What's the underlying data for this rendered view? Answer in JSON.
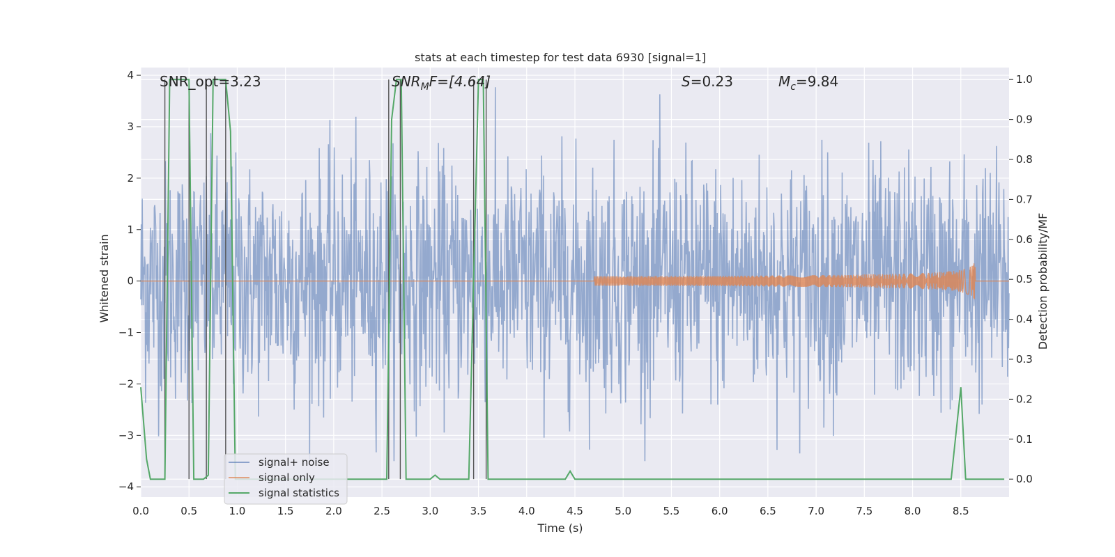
{
  "chart_data": {
    "type": "line",
    "title": "stats at each timestep for test data 6930 [signal=1]",
    "xlabel": "Time (s)",
    "ylabel": "Whitened strain",
    "ylabel_right": "Detection probability/MF",
    "xlim": [
      0.0,
      9.0
    ],
    "ylim": [
      -4.2,
      4.15
    ],
    "ylim_right": [
      -0.045,
      1.03
    ],
    "x_ticks": [
      "0.0",
      "0.5",
      "1.0",
      "1.5",
      "2.0",
      "2.5",
      "3.0",
      "3.5",
      "4.0",
      "4.5",
      "5.0",
      "5.5",
      "6.0",
      "6.5",
      "7.0",
      "7.5",
      "8.0",
      "8.5"
    ],
    "y_ticks": [
      "−4",
      "−3",
      "−2",
      "−1",
      "0",
      "1",
      "2",
      "3",
      "4"
    ],
    "y_ticks_right": [
      "0.0",
      "0.1",
      "0.2",
      "0.3",
      "0.4",
      "0.5",
      "0.6",
      "0.7",
      "0.8",
      "0.9",
      "1.0"
    ],
    "grid": true,
    "legend_position": "lower-left",
    "annotations": {
      "snr_opt": "SNR_opt=3.23",
      "snr_mf_label": "SNR",
      "snr_mf_sub": "M",
      "snr_mf_rest": "F=[4.64]",
      "s_label": "S",
      "s_rest": "=0.23",
      "mc_label": "M",
      "mc_sub": "c",
      "mc_rest": "=9.84"
    },
    "series": [
      {
        "name": "signal+ noise",
        "color": "#4c72b0",
        "description": "noisy whitened strain, amplitude roughly within ±2 with spikes to ±3.8",
        "envelope": [
          -1.6,
          1.6
        ],
        "peak": [
          -3.5,
          3.8
        ]
      },
      {
        "name": "signal only",
        "color": "#dd8452",
        "description": "chirp signal growing in amplitude toward merger",
        "x_start": 4.7,
        "x_merger": 8.65,
        "peak_amplitude": 0.4
      },
      {
        "name": "signal statistics",
        "color": "#55a868",
        "axis": "right",
        "x": [
          0.0,
          0.06,
          0.1,
          0.25,
          0.3,
          0.5,
          0.55,
          0.6,
          0.65,
          0.7,
          0.75,
          0.8,
          0.88,
          0.93,
          0.98,
          1.05,
          1.1,
          1.5,
          2.0,
          2.55,
          2.6,
          2.65,
          2.7,
          2.75,
          2.8,
          3.0,
          3.05,
          3.1,
          3.4,
          3.5,
          3.55,
          3.6,
          3.65,
          3.7,
          3.9,
          4.4,
          4.45,
          4.5,
          8.0,
          8.4,
          8.5,
          8.55,
          8.6,
          8.95
        ],
        "values": [
          0.23,
          0.05,
          0.0,
          0.0,
          1.0,
          1.0,
          0.0,
          0.0,
          0.0,
          0.01,
          1.0,
          1.0,
          1.0,
          0.87,
          0.0,
          0.0,
          0.0,
          0.0,
          0.0,
          0.0,
          0.9,
          1.0,
          1.0,
          0.0,
          0.0,
          0.0,
          0.01,
          0.0,
          0.0,
          1.0,
          1.0,
          0.0,
          0.0,
          0.0,
          0.0,
          0.0,
          0.02,
          0.0,
          0.0,
          0.0,
          0.23,
          0.0,
          0.0,
          0.0
        ]
      }
    ],
    "vertical_markers_x": [
      0.25,
      0.5,
      0.68,
      0.88,
      2.57,
      2.69,
      3.45,
      3.58
    ]
  },
  "colors": {
    "plot_background": "#eaeaf2",
    "grid": "#ffffff",
    "marker_lines": "#555555"
  }
}
